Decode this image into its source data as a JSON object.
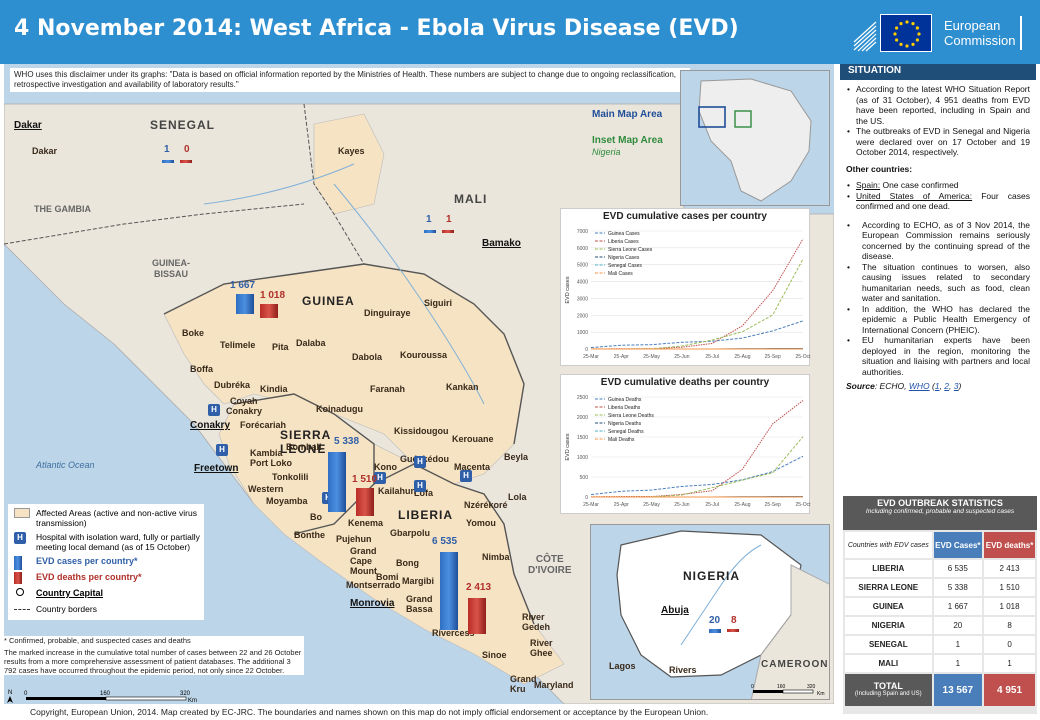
{
  "header": {
    "title": "4 November 2014: West Africa - Ebola Virus Disease (EVD)",
    "logo_line1": "European",
    "logo_line2": "Commission"
  },
  "disclaimer": "WHO uses this disclaimer under its graphs: \"Data is based on official information reported by the Ministries of Health. These numbers are subject to change due to ongoing reclassification, retrospective investigation and availability of laboratory results.\"",
  "inset_labels": {
    "main_map": "Main Map Area",
    "inset_map": "Inset Map Area",
    "inset_sub": "Nigeria"
  },
  "map_labels": {
    "countries": {
      "senegal": "SENEGAL",
      "mali": "MALI",
      "guinea": "GUINEA",
      "sierra_leone_1": "SIERRA",
      "sierra_leone_2": "LEONE",
      "liberia": "LIBERIA",
      "gambia": "THE GAMBIA",
      "guinea_bissau_1": "GUINEA-",
      "guinea_bissau_2": "BISSAU",
      "cote_1": "CÔTE",
      "cote_2": "D'IVOIRE",
      "nigeria": "NIGERIA",
      "cameroon": "CAMEROON"
    },
    "capitals": {
      "dakar": "Dakar",
      "bamako": "Bamako",
      "conakry": "Conakry",
      "freetown": "Freetown",
      "monrovia": "Monrovia",
      "abuja": "Abuja"
    },
    "ocean": "Atlantic Ocean",
    "regions": [
      "Dakar",
      "Kayes",
      "Boke",
      "Telimele",
      "Pita",
      "Dalaba",
      "Dinguiraye",
      "Siguiri",
      "Dabola",
      "Kouroussa",
      "Boffa",
      "Dubréka",
      "Kindia",
      "Faranah",
      "Kankan",
      "Coyah",
      "Conakry",
      "Forécariah",
      "Koinadugu",
      "Bombali",
      "Kissidougou",
      "Kerouane",
      "Kambia",
      "Port Loko",
      "Tonkolili",
      "Western",
      "Kono",
      "Guéckédou",
      "Macenta",
      "Beyla",
      "Kailahun",
      "Lofa",
      "Nzérékoré",
      "Moyamba",
      "Bo",
      "Kenema",
      "Yomou",
      "Lola",
      "Bonthe",
      "Pujehun",
      "Gbarpolu",
      "Grand Cape Mount",
      "Bomi",
      "Bong",
      "Nimba",
      "Montserrado",
      "Margibi",
      "Grand Bassa",
      "Rivercess",
      "River Gedeh",
      "Sinoe",
      "River Ghee",
      "Grand Kru",
      "Maryland",
      "Lagos",
      "Rivers"
    ],
    "senegal_cases": "1",
    "senegal_deaths": "0",
    "mali_cases": "1",
    "mali_deaths": "1",
    "guinea_cases": "1 667",
    "guinea_deaths": "1 018",
    "sl_cases": "5 338",
    "sl_deaths": "1 510",
    "lib_cases": "6 535",
    "lib_deaths": "2 413",
    "ng_cases": "20",
    "ng_deaths": "8"
  },
  "chart_data": [
    {
      "type": "line",
      "title": "EVD cumulative cases per country",
      "ylabel": "EVD cases",
      "categories": [
        "25-Mar",
        "25-Apr",
        "25-May",
        "25-Jun",
        "25-Jul",
        "25-Aug",
        "25-Sep",
        "25-Oct"
      ],
      "ylim": [
        0,
        7000
      ],
      "yticks": [
        "0",
        "1000",
        "2000",
        "3000",
        "4000",
        "5000",
        "6000",
        "7000"
      ],
      "series": [
        {
          "name": "Guinea Cases",
          "color": "#4a7ebb",
          "values": [
            86,
            224,
            258,
            398,
            460,
            648,
            1074,
            1667
          ]
        },
        {
          "name": "Liberia Cases",
          "color": "#c0504d",
          "values": [
            8,
            13,
            12,
            107,
            329,
            1378,
            3458,
            6535
          ]
        },
        {
          "name": "Sierra Leone Cases",
          "color": "#9bbb59",
          "values": [
            0,
            0,
            16,
            176,
            533,
            1026,
            2021,
            5338
          ]
        },
        {
          "name": "Nigeria Cases",
          "color": "#1f4e79",
          "values": [
            0,
            0,
            0,
            0,
            1,
            15,
            20,
            20
          ]
        },
        {
          "name": "Senegal Cases",
          "color": "#4bacc6",
          "values": [
            0,
            0,
            0,
            0,
            0,
            1,
            1,
            1
          ]
        },
        {
          "name": "Mali Cases",
          "color": "#f79646",
          "values": [
            0,
            0,
            0,
            0,
            0,
            0,
            0,
            1
          ]
        }
      ]
    },
    {
      "type": "line",
      "title": "EVD cumulative deaths per country",
      "ylabel": "EVD cases",
      "categories": [
        "25-Mar",
        "25-Apr",
        "25-May",
        "25-Jun",
        "25-Jul",
        "25-Aug",
        "25-Sep",
        "25-Oct"
      ],
      "ylim": [
        0,
        2500
      ],
      "yticks": [
        "0",
        "500",
        "1000",
        "1500",
        "2000",
        "2500"
      ],
      "series": [
        {
          "name": "Guinea Deaths",
          "color": "#4a7ebb",
          "values": [
            60,
            143,
            174,
            264,
            314,
            430,
            635,
            1018
          ]
        },
        {
          "name": "Liberia Deaths",
          "color": "#c0504d",
          "values": [
            6,
            11,
            11,
            65,
            156,
            694,
            1830,
            2413
          ]
        },
        {
          "name": "Sierra Leone Deaths",
          "color": "#9bbb59",
          "values": [
            0,
            0,
            5,
            49,
            233,
            422,
            605,
            1510
          ]
        },
        {
          "name": "Nigeria Deaths",
          "color": "#1f4e79",
          "values": [
            0,
            0,
            0,
            0,
            1,
            5,
            8,
            8
          ]
        },
        {
          "name": "Senegal Deaths",
          "color": "#4bacc6",
          "values": [
            0,
            0,
            0,
            0,
            0,
            0,
            0,
            0
          ]
        },
        {
          "name": "Mali Deaths",
          "color": "#f79646",
          "values": [
            0,
            0,
            0,
            0,
            0,
            0,
            0,
            1
          ]
        }
      ]
    }
  ],
  "legend": {
    "affected": "Affected Areas (active and non-active virus transmission)",
    "hospital": "Hospital with isolation ward, fully or partially meeting local demand (as of 15 October)",
    "cases": "EVD cases per country*",
    "deaths": "EVD deaths per country*",
    "capital": "Country Capital",
    "borders": "Country borders"
  },
  "notes": {
    "n1": "* Confirmed, probable, and suspected cases and deaths",
    "n2": "The marked increase in the cumulative total number of cases between 22 and 26 October results from a more comprehensive assessment of patient databases. The additional 3 792 cases have occurred throughout the epidemic period, not only since 22 October."
  },
  "scale": {
    "s0": "0",
    "s1": "160",
    "s2": "320",
    "unit": "Km",
    "n": "N"
  },
  "inset_scale": {
    "s0": "0",
    "s1": "160",
    "s2": "320",
    "unit": "Km"
  },
  "footer": "Copyright, European Union, 2014. Map created by EC-JRC. The boundaries and names shown on this map do not imply official endorsement or acceptance by the European Union.",
  "situation": {
    "heading": "SITUATION",
    "bullets": [
      "According to the latest WHO Situation Report (as of 31 October), 4 951 deaths from EVD have been reported, including in Spain and the US.",
      "The outbreaks of EVD in Senegal and Nigeria were declared over on 17 October and 19 October 2014, respectively."
    ],
    "other_heading": "Other countries:",
    "spain_label": "Spain:",
    "spain_text": " One case confirmed",
    "usa_label": "United States of America:",
    "usa_text": " Four cases confirmed and one dead.",
    "bullets2": [
      "According to ECHO, as of 3 Nov 2014, the European Commission remains seriously concerned by the continuing spread of the disease.",
      "The situation continues to worsen, also causing issues related to secondary humanitarian needs, such as food, clean water and sanitation.",
      "In addition, the WHO has declared the epidemic a Public Health Emergency of International Concern (PHEIC).",
      "EU humanitarian experts have been deployed in the region, monitoring the situation and liaising with partners and local authorities."
    ],
    "source_label": "Source",
    "source_text": ": ECHO, ",
    "source_who": "WHO",
    "source_refs": [
      "1",
      "2",
      "3"
    ]
  },
  "stats": {
    "title": "EVD OUTBREAK STATISTICS",
    "subtitle": "Including confirmed, probable and suspected cases",
    "col0": "Countries with EDV cases",
    "col1": "EVD Cases*",
    "col2": "EVD deaths*",
    "rows": [
      {
        "country": "LIBERIA",
        "cases": "6 535",
        "deaths": "2 413"
      },
      {
        "country": "SIERRA LEONE",
        "cases": "5 338",
        "deaths": "1 510"
      },
      {
        "country": "GUINEA",
        "cases": "1 667",
        "deaths": "1 018"
      },
      {
        "country": "NIGERIA",
        "cases": "20",
        "deaths": "8"
      },
      {
        "country": "SENEGAL",
        "cases": "1",
        "deaths": "0"
      },
      {
        "country": "MALI",
        "cases": "1",
        "deaths": "1"
      }
    ],
    "total_label": "TOTAL",
    "total_sub": "(Including Spain and US)",
    "total_cases": "13 567",
    "total_deaths": "4 951"
  }
}
